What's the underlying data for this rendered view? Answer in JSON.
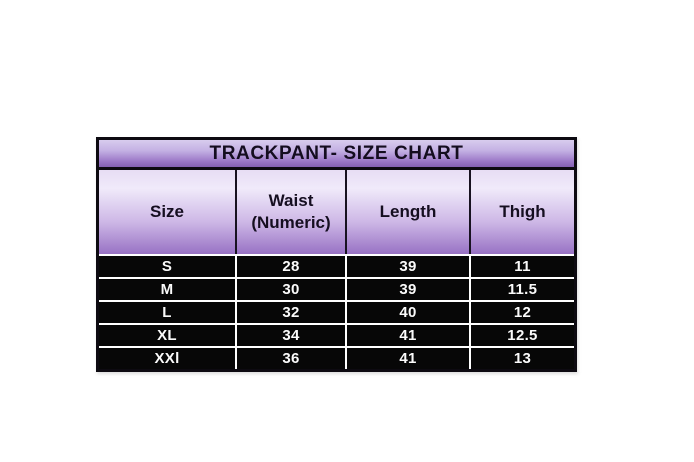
{
  "colors": {
    "page_background": "#ffffff",
    "outer_border": "#0d0a11",
    "title_gradient_top": "#d8ccee",
    "title_gradient_bottom": "#8460b2",
    "header_gradient_top": "#f0eafa",
    "header_gradient_bottom": "#9872c4",
    "title_text": "#140d1f",
    "header_text": "#150e20",
    "body_background": "#070707",
    "body_text": "#fafafa",
    "row_divider": "#ffffff"
  },
  "chart_data": {
    "type": "table",
    "title": "TRACKPANT- SIZE CHART",
    "columns": [
      "Size",
      "Waist (Numeric)",
      "Length",
      "Thigh"
    ],
    "rows": [
      [
        "S",
        "28",
        "39",
        "11"
      ],
      [
        "M",
        "30",
        "39",
        "11.5"
      ],
      [
        "L",
        "32",
        "40",
        "12"
      ],
      [
        "XL",
        "34",
        "41",
        "12.5"
      ],
      [
        "XXl",
        "36",
        "41",
        "13"
      ]
    ],
    "layout_hints": {
      "title_bar_style": "purple glossy gradient, black bold centered text",
      "header_style": "purple gradient cells with dark separators",
      "body_style": "black rows, white bold centered values, white grid lines"
    }
  }
}
